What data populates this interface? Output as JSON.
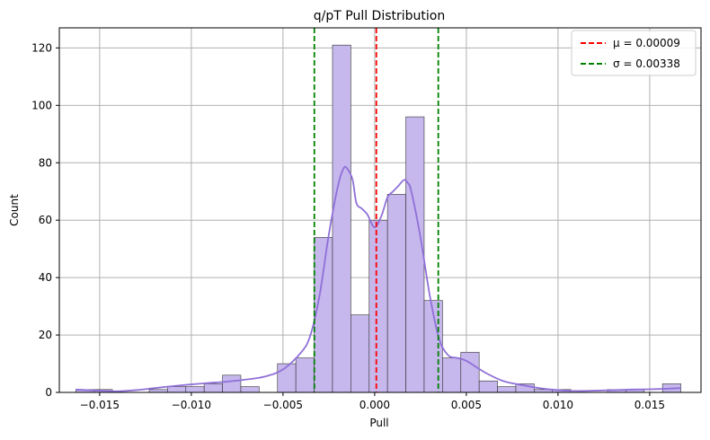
{
  "chart_data": {
    "type": "bar",
    "title": "q/pT Pull Distribution",
    "xlabel": "Pull",
    "ylabel": "Count",
    "xlim": [
      -0.0172,
      0.0178
    ],
    "ylim": [
      0,
      127
    ],
    "xticks": [
      -0.015,
      -0.01,
      -0.005,
      0.0,
      0.005,
      0.01,
      0.015
    ],
    "xtick_labels": [
      "−0.015",
      "−0.010",
      "−0.005",
      "0.000",
      "0.005",
      "0.010",
      "0.015"
    ],
    "yticks": [
      0,
      20,
      40,
      60,
      80,
      100,
      120
    ],
    "ytick_labels": [
      "0",
      "20",
      "40",
      "60",
      "80",
      "100",
      "120"
    ],
    "grid": true,
    "legend_position": "top-right",
    "bin_width": 0.001,
    "bins": [
      {
        "x0": -0.0163,
        "x1": -0.0153,
        "count": 1
      },
      {
        "x0": -0.0153,
        "x1": -0.0143,
        "count": 1
      },
      {
        "x0": -0.0143,
        "x1": -0.0133,
        "count": 0
      },
      {
        "x0": -0.0133,
        "x1": -0.0123,
        "count": 0
      },
      {
        "x0": -0.0123,
        "x1": -0.0113,
        "count": 1
      },
      {
        "x0": -0.0113,
        "x1": -0.0103,
        "count": 2
      },
      {
        "x0": -0.0103,
        "x1": -0.0093,
        "count": 2
      },
      {
        "x0": -0.0093,
        "x1": -0.0083,
        "count": 3
      },
      {
        "x0": -0.0083,
        "x1": -0.0073,
        "count": 6
      },
      {
        "x0": -0.0073,
        "x1": -0.0063,
        "count": 2
      },
      {
        "x0": -0.0063,
        "x1": -0.0053,
        "count": 0
      },
      {
        "x0": -0.0053,
        "x1": -0.0043,
        "count": 10
      },
      {
        "x0": -0.0043,
        "x1": -0.0033,
        "count": 12
      },
      {
        "x0": -0.0033,
        "x1": -0.0023,
        "count": 54
      },
      {
        "x0": -0.0023,
        "x1": -0.0013,
        "count": 121
      },
      {
        "x0": -0.0013,
        "x1": -0.0003,
        "count": 27
      },
      {
        "x0": -0.0003,
        "x1": 0.0007,
        "count": 60
      },
      {
        "x0": 0.0007,
        "x1": 0.0017,
        "count": 69
      },
      {
        "x0": 0.0017,
        "x1": 0.0027,
        "count": 96
      },
      {
        "x0": 0.0027,
        "x1": 0.0037,
        "count": 32
      },
      {
        "x0": 0.0037,
        "x1": 0.0047,
        "count": 12
      },
      {
        "x0": 0.0047,
        "x1": 0.0057,
        "count": 14
      },
      {
        "x0": 0.0057,
        "x1": 0.0067,
        "count": 4
      },
      {
        "x0": 0.0067,
        "x1": 0.0077,
        "count": 2
      },
      {
        "x0": 0.0077,
        "x1": 0.0087,
        "count": 3
      },
      {
        "x0": 0.0087,
        "x1": 0.0097,
        "count": 1
      },
      {
        "x0": 0.0097,
        "x1": 0.0107,
        "count": 1
      },
      {
        "x0": 0.0107,
        "x1": 0.0117,
        "count": 0
      },
      {
        "x0": 0.0117,
        "x1": 0.0127,
        "count": 0
      },
      {
        "x0": 0.0127,
        "x1": 0.0137,
        "count": 1
      },
      {
        "x0": 0.0137,
        "x1": 0.0147,
        "count": 1
      },
      {
        "x0": 0.0147,
        "x1": 0.0157,
        "count": 0
      },
      {
        "x0": 0.0157,
        "x1": 0.0167,
        "count": 3
      }
    ],
    "kde": {
      "x": [
        -0.0163,
        -0.015,
        -0.014,
        -0.013,
        -0.012,
        -0.011,
        -0.01,
        -0.009,
        -0.008,
        -0.007,
        -0.006,
        -0.005,
        -0.004,
        -0.0035,
        -0.003,
        -0.0025,
        -0.002,
        -0.0017,
        -0.0015,
        -0.0012,
        -0.001,
        -0.0007,
        -0.0004,
        -0.0001,
        0.0001,
        0.0004,
        0.0007,
        0.001,
        0.0013,
        0.0016,
        0.0018,
        0.002,
        0.0025,
        0.003,
        0.0035,
        0.004,
        0.0045,
        0.005,
        0.006,
        0.007,
        0.008,
        0.009,
        0.01,
        0.011,
        0.012,
        0.013,
        0.014,
        0.015,
        0.016,
        0.0167
      ],
      "y": [
        1,
        0.6,
        0.4,
        0.8,
        1.5,
        2.2,
        2.8,
        3.3,
        3.8,
        4.5,
        5.5,
        8,
        14,
        20,
        34,
        55,
        72,
        78,
        78,
        74,
        66,
        64,
        62,
        58,
        58,
        62,
        68,
        70,
        72,
        74,
        73,
        70,
        54,
        34,
        19,
        13,
        12,
        11,
        7,
        4,
        2.6,
        1.5,
        0.8,
        0.5,
        0.6,
        0.8,
        1,
        1.1,
        1.3,
        1.5
      ]
    },
    "series": [
      {
        "name": "μ = 0.00009",
        "value": 9e-05,
        "color": "#ff0000",
        "style": "dashed"
      },
      {
        "name": "σ = 0.00338",
        "value": 0.00338,
        "color": "#008000",
        "style": "dashed"
      }
    ],
    "sigma_lines": [
      -0.00329,
      0.00347
    ],
    "colors": {
      "bar_fill": "#c6b7ec",
      "bar_edge": "#333333",
      "kde": "#8f70d8",
      "grid": "#b0b0b0"
    }
  }
}
